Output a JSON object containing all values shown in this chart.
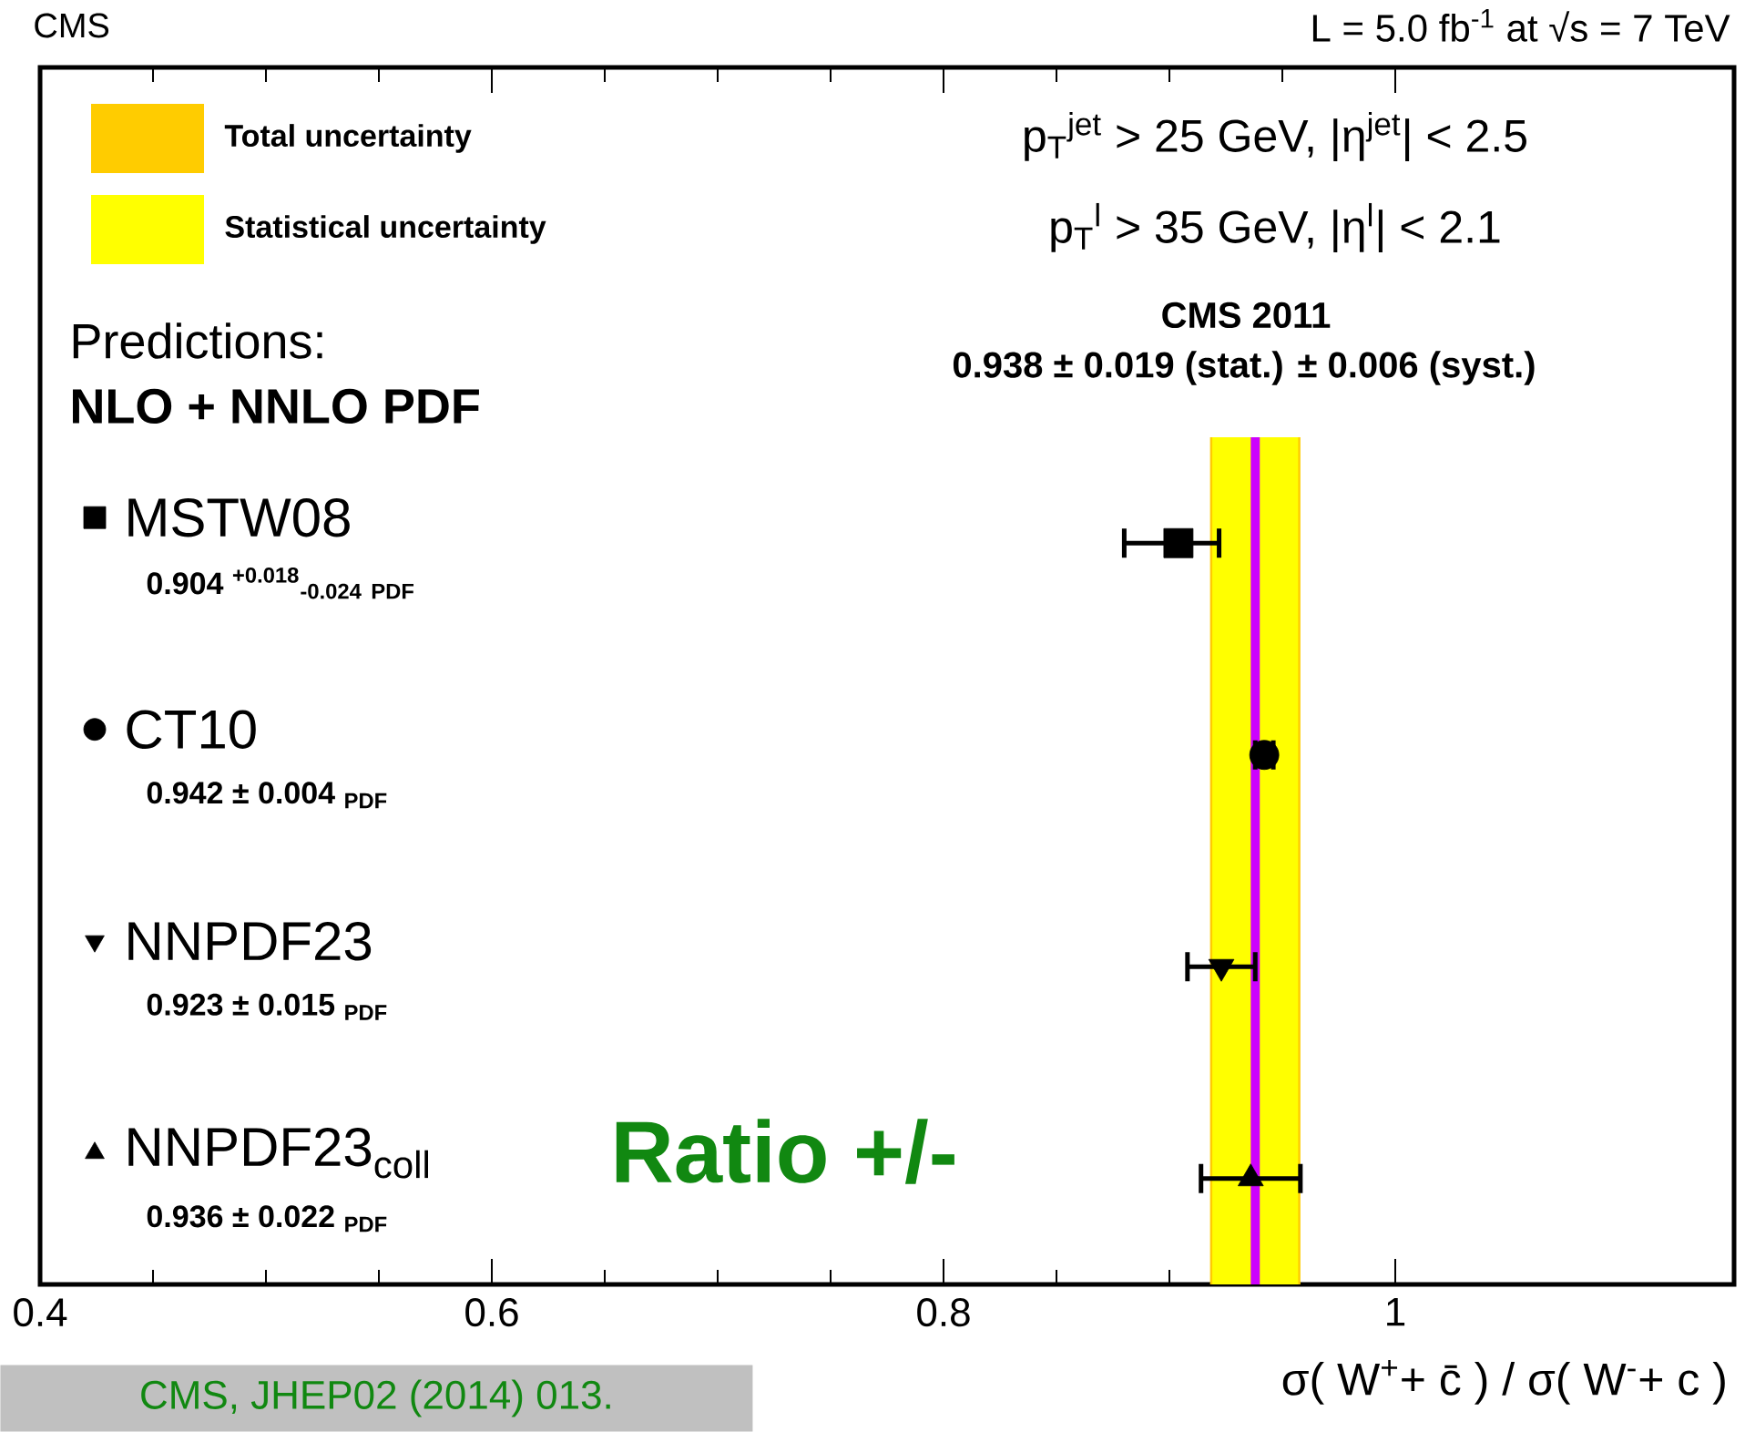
{
  "chart_data": {
    "type": "scatter",
    "orientation": "horizontal",
    "xlabel": "σ( W$^{+}$+ c̄ ) / σ( W$^{-}$+ c )",
    "categories": [
      null,
      null,
      null,
      null
    ],
    "xlim": [
      0.4,
      1.15
    ],
    "xticks": [
      0.4,
      0.6,
      0.8,
      1
    ],
    "legend": "left",
    "series": [
      {
        "name": "MSTW08",
        "color": "#000000",
        "marker": "square",
        "values": [
          0.904,
          null,
          null,
          null
        ],
        "errors": [
          [
            0.88,
            0.922
          ],
          null,
          null,
          null
        ]
      },
      {
        "name": "CT10",
        "color": "#000000",
        "marker": "circle",
        "values": [
          null,
          0.942,
          null,
          null
        ],
        "errors": [
          null,
          0.004,
          null,
          null
        ]
      },
      {
        "name": "NNPDF23",
        "color": "#000000",
        "marker": "triangle-down",
        "values": [
          null,
          null,
          0.923,
          null
        ],
        "errors": [
          null,
          null,
          0.015,
          null
        ]
      },
      {
        "name": "NNPDF23$_{coll}$",
        "color": "#000000",
        "marker": "triangle",
        "values": [
          null,
          null,
          null,
          0.936
        ],
        "errors": [
          null,
          null,
          null,
          0.022
        ]
      }
    ],
    "bands": [
      {
        "axis": "x",
        "from": 0.918,
        "to": 0.958,
        "label": "Total uncertainty",
        "color": "#ffcc00"
      },
      {
        "axis": "x",
        "from": 0.919,
        "to": 0.957,
        "label": "Statistical uncertainty",
        "color": "#ffff00"
      }
    ],
    "ref_lines": [
      {
        "axis": "x",
        "value": 0.938,
        "color": "#cc00ff"
      }
    ],
    "annotations": [
      "CMS 2011",
      "CMS",
      "L = 5.0 fb$^{-1}$ at √s = 7 TeV",
      "p$_{T}$$^{jet}$ > 25 GeV, |η$^{jet}$| < 2.5",
      "p$_{T}$$^{l}$ > 35 GeV, |η$^{l}$| < 2.1",
      "0.938 ± 0.019 (stat.) ± 0.006 (syst.)",
      "Predictions:",
      "NLO + NNLO PDF",
      "Ratio +/-",
      "CMS, JHEP02 (2014) 013.",
      "0.904 $^{+0.018}$$_{-0.024}$ $_{PDF}$",
      "0.942 ± 0.004 $_{PDF}$",
      "0.923 ± 0.015 $_{PDF}$",
      "0.936 ± 0.022 $_{PDF}$"
    ]
  }
}
